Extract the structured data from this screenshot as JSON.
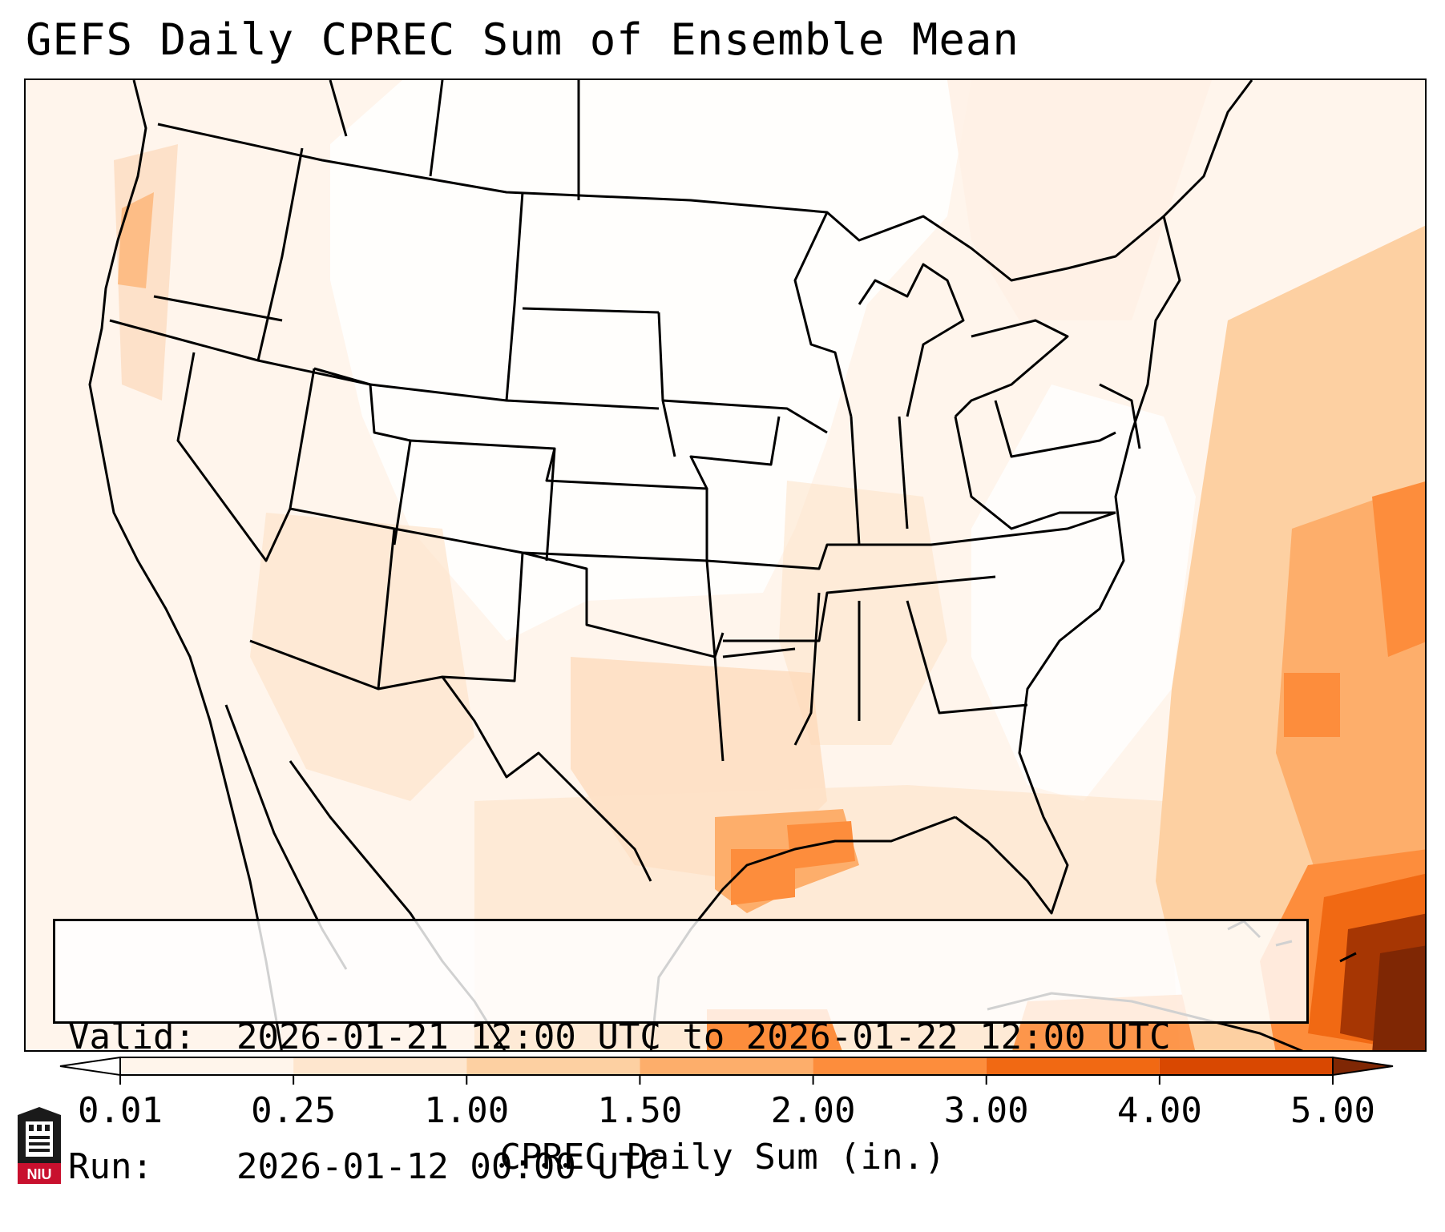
{
  "title": "GEFS Daily CPREC Sum of Ensemble Mean",
  "info": {
    "valid_label": "Valid:",
    "valid_value": "2026-01-21 12:00 UTC to 2026-01-22 12:00 UTC",
    "run_label": "Run:",
    "run_value": "2026-01-12 00:00 UTC"
  },
  "colorbar": {
    "label": "CPREC Daily Sum (in.)",
    "levels": [
      "0.01",
      "0.25",
      "1.00",
      "1.50",
      "2.00",
      "3.00",
      "4.00",
      "5.00"
    ],
    "colors": [
      "#fff5eb",
      "#fee6ce",
      "#fdd0a2",
      "#fdae6b",
      "#fd8d3c",
      "#f16913",
      "#d94801",
      "#a63603"
    ],
    "under_color": "#ffffff",
    "over_color": "#7f2704",
    "extend": "both"
  },
  "logo": {
    "text": "NIU",
    "icon": "university-tower-icon",
    "color": "#c8102e"
  },
  "map": {
    "region": "Continental United States",
    "field": "Convective precipitation daily sum (in.)",
    "max_region": "Caribbean near Cuba / Bahamas",
    "max_value_bin": ">5.00"
  }
}
